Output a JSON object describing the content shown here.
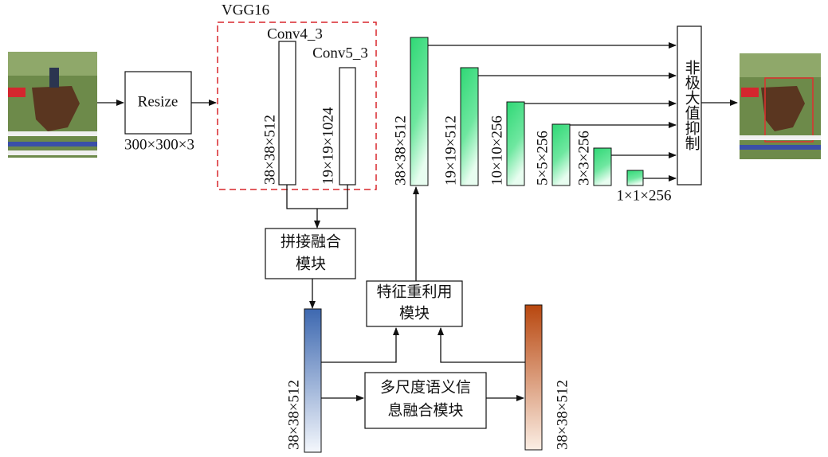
{
  "input": {
    "resize": "Resize",
    "size": "300×300×3"
  },
  "vgg": {
    "title": "VGG16",
    "layers": [
      {
        "name": "Conv4_3",
        "shape": "38×38×512"
      },
      {
        "name": "Conv5_3",
        "shape": "19×19×1024"
      }
    ]
  },
  "modules": {
    "concat_fusion": [
      "拼接融合",
      "模块"
    ],
    "feature_reuse": [
      "特征重利用",
      "模块"
    ],
    "multiscale_fusion": [
      "多尺度语义信",
      "息融合模块"
    ]
  },
  "fused_shape": "38×38×512",
  "multiscale_shape": "38×38×512",
  "pyramid": [
    "38×38×512",
    "19×19×512",
    "10×10×256",
    "5×5×256",
    "3×3×256",
    "1×1×256"
  ],
  "nms": "非极大值抑制"
}
